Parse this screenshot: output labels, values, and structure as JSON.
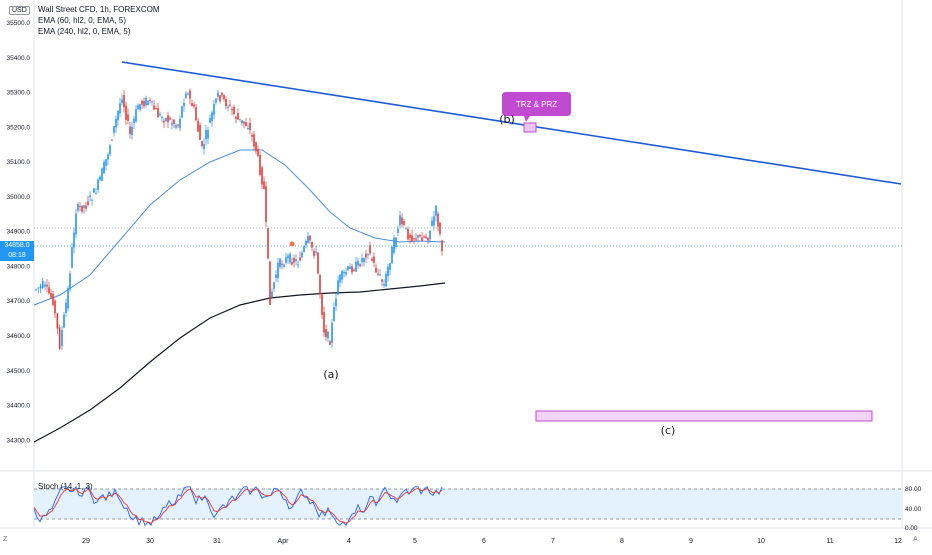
{
  "header": {
    "currency": "USD",
    "symbol_line": "Wall Street CFD, 1h, FOREXCOM",
    "ema_fast_label": "EMA (60, hl2, 0, EMA, 5)",
    "ema_slow_label": "EMA (240, hl2, 0, EMA, 5)"
  },
  "price_tag": {
    "price": "34858.0",
    "countdown": "08:18"
  },
  "annotations": {
    "callout": "TRZ  &  PRZ",
    "wave_a": "(a)",
    "wave_b": "(b)",
    "wave_c": "(c)"
  },
  "indicator": {
    "label": "Stoch (14, 1, 3)",
    "ticks": [
      "80.00",
      "40.00",
      "0.00"
    ]
  },
  "corners": {
    "left": "Z",
    "right": "A"
  },
  "colors": {
    "up": "#2196f3",
    "down": "#e53935",
    "trendline": "#1e5bd6",
    "ema_fast": "#4a90e2",
    "ema_slow": "#131722",
    "callout": "#c04ad0",
    "box_fill": "#f4d4f4",
    "box_stroke": "#c04ad0",
    "stoch_k": "#2962ff",
    "stoch_d": "#e53935",
    "stoch_band": "#e3f2fd"
  },
  "chart_data": {
    "type": "candlestick",
    "price_axis": {
      "ticks": [
        "35500.0",
        "35400.0",
        "35300.0",
        "35200.0",
        "35100.0",
        "35000.0",
        "34900.0",
        "34800.0",
        "34700.0",
        "34600.0",
        "34500.0",
        "34400.0",
        "34300.0"
      ],
      "range": [
        34250,
        35560
      ]
    },
    "time_axis": {
      "ticks": [
        "29",
        "30",
        "31",
        "Apr",
        "4",
        "5",
        "6",
        "7",
        "8",
        "9",
        "10",
        "11",
        "12"
      ]
    },
    "candles_sample": [
      {
        "t": "29",
        "o": 34800,
        "h": 34900,
        "l": 34560,
        "c": 34600
      },
      {
        "t": "29",
        "o": 34980,
        "h": 35300,
        "l": 34950,
        "c": 35250
      },
      {
        "t": "30",
        "o": 35300,
        "h": 35380,
        "l": 35150,
        "c": 35200
      },
      {
        "t": "31",
        "o": 35300,
        "h": 35360,
        "l": 35050,
        "c": 35200
      },
      {
        "t": "Apr",
        "o": 34870,
        "h": 34910,
        "l": 34700,
        "c": 34860
      },
      {
        "t": "4",
        "o": 34800,
        "h": 34870,
        "l": 34530,
        "c": 34640
      },
      {
        "t": "5",
        "o": 34880,
        "h": 34970,
        "l": 34830,
        "c": 34858
      }
    ],
    "trendline": [
      {
        "t": "29",
        "price": 35390
      },
      {
        "t": "12",
        "price": 35030
      }
    ],
    "stoch_range": [
      0,
      100
    ]
  }
}
